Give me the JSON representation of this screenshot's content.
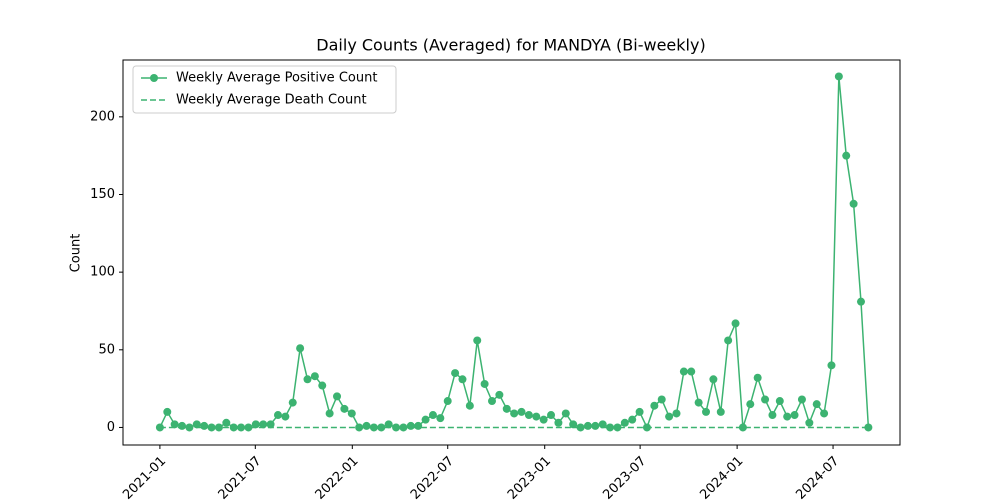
{
  "chart_data": {
    "type": "line",
    "title": "Daily Counts (Averaged) for MANDYA (Bi-weekly)",
    "y_label": "Count",
    "x": [
      "2021-01-01",
      "2021-01-15",
      "2021-01-29",
      "2021-02-12",
      "2021-02-26",
      "2021-03-12",
      "2021-03-26",
      "2021-04-09",
      "2021-04-23",
      "2021-05-07",
      "2021-05-21",
      "2021-06-04",
      "2021-06-18",
      "2021-07-02",
      "2021-07-16",
      "2021-07-30",
      "2021-08-13",
      "2021-08-27",
      "2021-09-10",
      "2021-09-24",
      "2021-10-08",
      "2021-10-22",
      "2021-11-05",
      "2021-11-19",
      "2021-12-03",
      "2021-12-17",
      "2021-12-31",
      "2022-01-14",
      "2022-01-28",
      "2022-02-11",
      "2022-02-25",
      "2022-03-11",
      "2022-03-25",
      "2022-04-08",
      "2022-04-22",
      "2022-05-06",
      "2022-05-20",
      "2022-06-03",
      "2022-06-17",
      "2022-07-01",
      "2022-07-15",
      "2022-07-29",
      "2022-08-12",
      "2022-08-26",
      "2022-09-09",
      "2022-09-23",
      "2022-10-07",
      "2022-10-21",
      "2022-11-04",
      "2022-11-18",
      "2022-12-02",
      "2022-12-16",
      "2022-12-30",
      "2023-01-13",
      "2023-01-27",
      "2023-02-10",
      "2023-02-24",
      "2023-03-10",
      "2023-03-24",
      "2023-04-07",
      "2023-04-21",
      "2023-05-05",
      "2023-05-19",
      "2023-06-02",
      "2023-06-16",
      "2023-06-30",
      "2023-07-14",
      "2023-07-28",
      "2023-08-11",
      "2023-08-25",
      "2023-09-08",
      "2023-09-22",
      "2023-10-06",
      "2023-10-20",
      "2023-11-03",
      "2023-11-17",
      "2023-12-01",
      "2023-12-15",
      "2023-12-29",
      "2024-01-12",
      "2024-01-26",
      "2024-02-09",
      "2024-02-23",
      "2024-03-08",
      "2024-03-22",
      "2024-04-05",
      "2024-04-19",
      "2024-05-03",
      "2024-05-17",
      "2024-05-31",
      "2024-06-14",
      "2024-06-28",
      "2024-07-12",
      "2024-07-26",
      "2024-08-09",
      "2024-08-23",
      "2024-09-06"
    ],
    "series": [
      {
        "name": "Weekly Average Positive Count",
        "color": "#3cb371",
        "marker": "circle",
        "dash": "solid",
        "values": [
          0,
          10,
          2,
          1,
          0,
          2,
          1,
          0,
          0,
          3,
          0,
          0,
          0,
          2,
          2,
          2,
          8,
          7,
          16,
          51,
          31,
          33,
          27,
          9,
          20,
          12,
          9,
          0,
          1,
          0,
          0,
          2,
          0,
          0,
          1,
          1,
          5,
          8,
          6,
          17,
          35,
          31,
          14,
          56,
          28,
          17,
          21,
          12,
          9,
          10,
          8,
          7,
          5,
          8,
          3,
          9,
          2,
          0,
          1,
          1,
          2,
          0,
          0,
          3,
          5,
          10,
          0,
          14,
          18,
          7,
          9,
          36,
          36,
          16,
          10,
          31,
          10,
          56,
          67,
          0,
          15,
          32,
          18,
          8,
          17,
          7,
          8,
          18,
          3,
          15,
          9,
          40,
          226,
          175,
          144,
          81,
          0
        ]
      },
      {
        "name": "Weekly Average Death Count",
        "color": "#3cb371",
        "marker": "none",
        "dash": "dashed",
        "values": [
          0,
          0,
          0,
          0,
          0,
          0,
          0,
          0,
          0,
          0,
          0,
          0,
          0,
          0,
          0,
          0,
          0,
          0,
          0,
          0,
          0,
          0,
          0,
          0,
          0,
          0,
          0,
          0,
          0,
          0,
          0,
          0,
          0,
          0,
          0,
          0,
          0,
          0,
          0,
          0,
          0,
          0,
          0,
          0,
          0,
          0,
          0,
          0,
          0,
          0,
          0,
          0,
          0,
          0,
          0,
          0,
          0,
          0,
          0,
          0,
          0,
          0,
          0,
          0,
          0,
          0,
          0,
          0,
          0,
          0,
          0,
          0,
          0,
          0,
          0,
          0,
          0,
          0,
          0,
          0,
          0,
          0,
          0,
          0,
          0,
          0,
          0,
          0,
          0,
          0,
          0,
          0,
          0,
          0,
          0,
          0,
          0
        ]
      }
    ],
    "xlim": [
      "2020-10-23",
      "2024-11-05"
    ],
    "xticks": [
      {
        "value": "2021-01-01",
        "label": "2021-01"
      },
      {
        "value": "2021-07-01",
        "label": "2021-07"
      },
      {
        "value": "2022-01-01",
        "label": "2022-01"
      },
      {
        "value": "2022-07-01",
        "label": "2022-07"
      },
      {
        "value": "2023-01-01",
        "label": "2023-01"
      },
      {
        "value": "2023-07-01",
        "label": "2023-07"
      },
      {
        "value": "2024-01-01",
        "label": "2024-01"
      },
      {
        "value": "2024-07-01",
        "label": "2024-07"
      }
    ],
    "ylim": [
      -11.3,
      236.6
    ],
    "yticks": [
      0,
      50,
      100,
      150,
      200
    ],
    "grid": false,
    "legend": "upper left"
  }
}
